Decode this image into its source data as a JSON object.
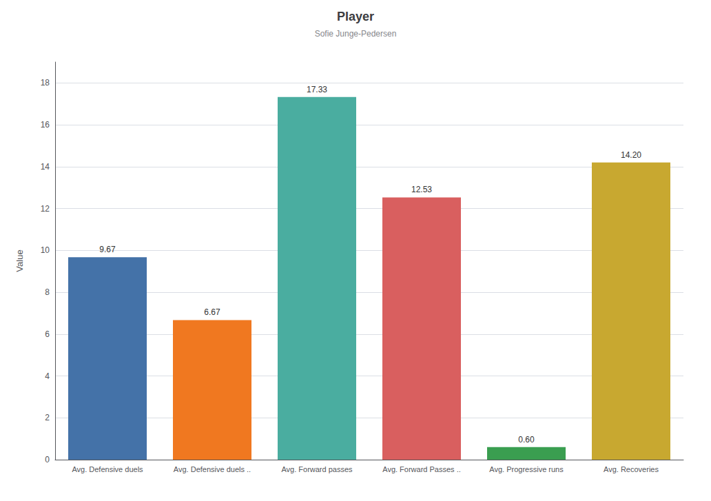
{
  "chart_data": {
    "type": "bar",
    "title": "Player",
    "subtitle": "Sofie Junge-Pedersen",
    "categories": [
      "Avg. Defensive duels",
      "Avg. Defensive duels ..",
      "Avg. Forward passes",
      "Avg. Forward Passes ..",
      "Avg. Progressive runs",
      "Avg. Recoveries"
    ],
    "values": [
      9.67,
      6.67,
      17.33,
      12.53,
      0.6,
      14.2
    ],
    "value_labels": [
      "9.67",
      "6.67",
      "17.33",
      "12.53",
      "0.60",
      "14.20"
    ],
    "colors": [
      "#4472a8",
      "#f07820",
      "#4aada0",
      "#d95f5f",
      "#3a9e50",
      "#c8a830"
    ],
    "ylabel": "Value",
    "ylim": [
      0,
      19
    ],
    "yticks": [
      0,
      2,
      4,
      6,
      8,
      10,
      12,
      14,
      16,
      18
    ],
    "grid": true,
    "data_labels": true
  }
}
